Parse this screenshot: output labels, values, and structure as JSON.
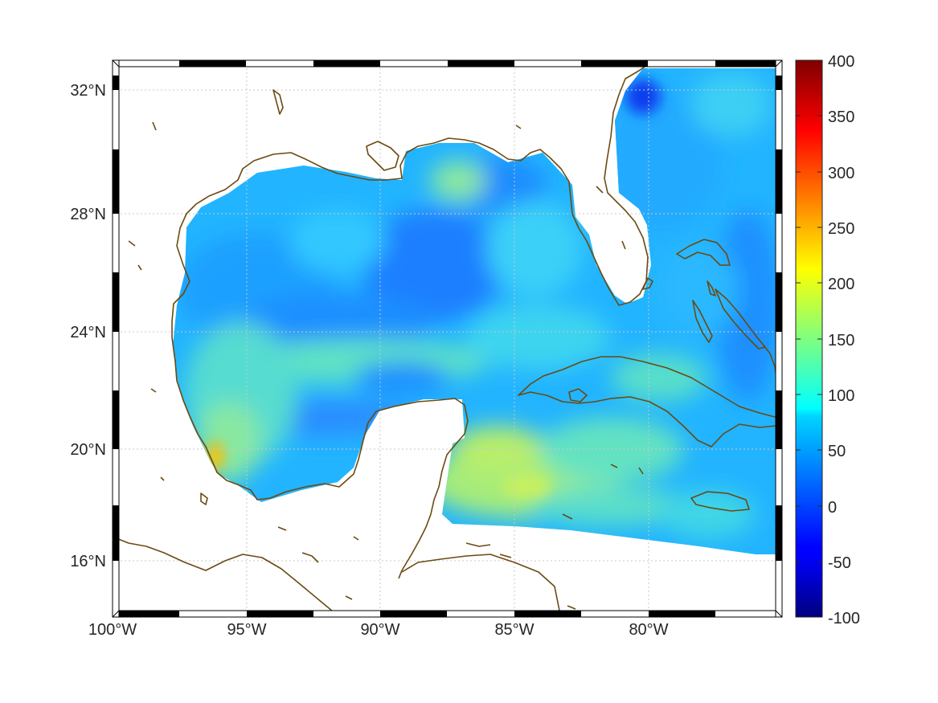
{
  "map": {
    "lat_labels": [
      "32°N",
      "28°N",
      "24°N",
      "20°N",
      "16°N"
    ],
    "lon_labels": [
      "100°W",
      "95°W",
      "90°W",
      "85°W",
      "80°W"
    ],
    "extent": {
      "lon_min": -100,
      "lon_max": -75,
      "lat_min": 14.3,
      "lat_max": 33
    },
    "grid": true,
    "coast_color": "#6b4a12",
    "frame_color": "#000000"
  },
  "colorbar": {
    "tick_labels": [
      "400",
      "350",
      "300",
      "250",
      "200",
      "150",
      "100",
      "50",
      "0",
      "-50",
      "-100"
    ],
    "range": [
      -100,
      400
    ],
    "colormap": "jet"
  }
}
